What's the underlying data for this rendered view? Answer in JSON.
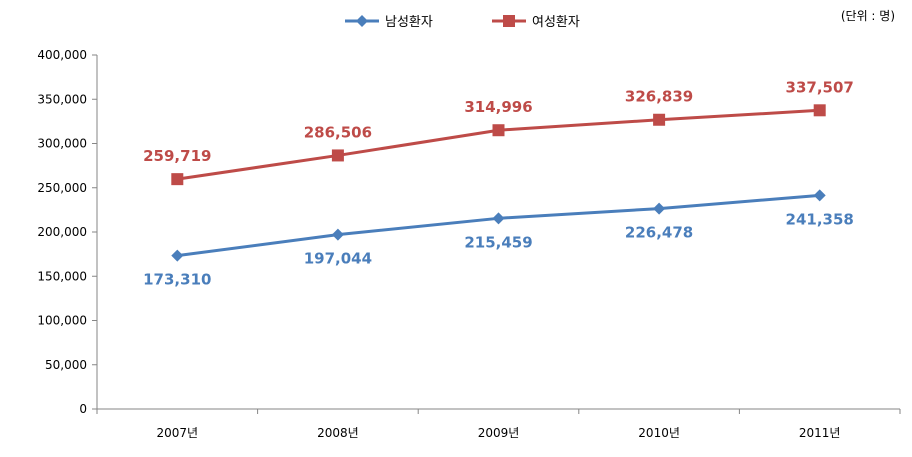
{
  "chart_data": {
    "type": "line",
    "categories": [
      "2007년",
      "2008년",
      "2009년",
      "2010년",
      "2011년"
    ],
    "series": [
      {
        "name": "남성환자",
        "values": [
          173310,
          197044,
          215459,
          226478,
          241358
        ],
        "labels": [
          "173,310",
          "197,044",
          "215,459",
          "226,478",
          "241,358"
        ],
        "color": "#4a7ebb",
        "marker": "diamond"
      },
      {
        "name": "여성환자",
        "values": [
          259719,
          286506,
          314996,
          326839,
          337507
        ],
        "labels": [
          "259,719",
          "286,506",
          "314,996",
          "326,839",
          "337,507"
        ],
        "color": "#be4b48",
        "marker": "square"
      }
    ],
    "ylim": [
      0,
      400000
    ],
    "yticks": [
      "0",
      "50,000",
      "100,000",
      "150,000",
      "200,000",
      "250,000",
      "300,000",
      "350,000",
      "400,000"
    ],
    "ytick_values": [
      0,
      50000,
      100000,
      150000,
      200000,
      250000,
      300000,
      350000,
      400000
    ],
    "unit": "(단위 : 명)",
    "grid": false,
    "legend_position": "top-center"
  }
}
